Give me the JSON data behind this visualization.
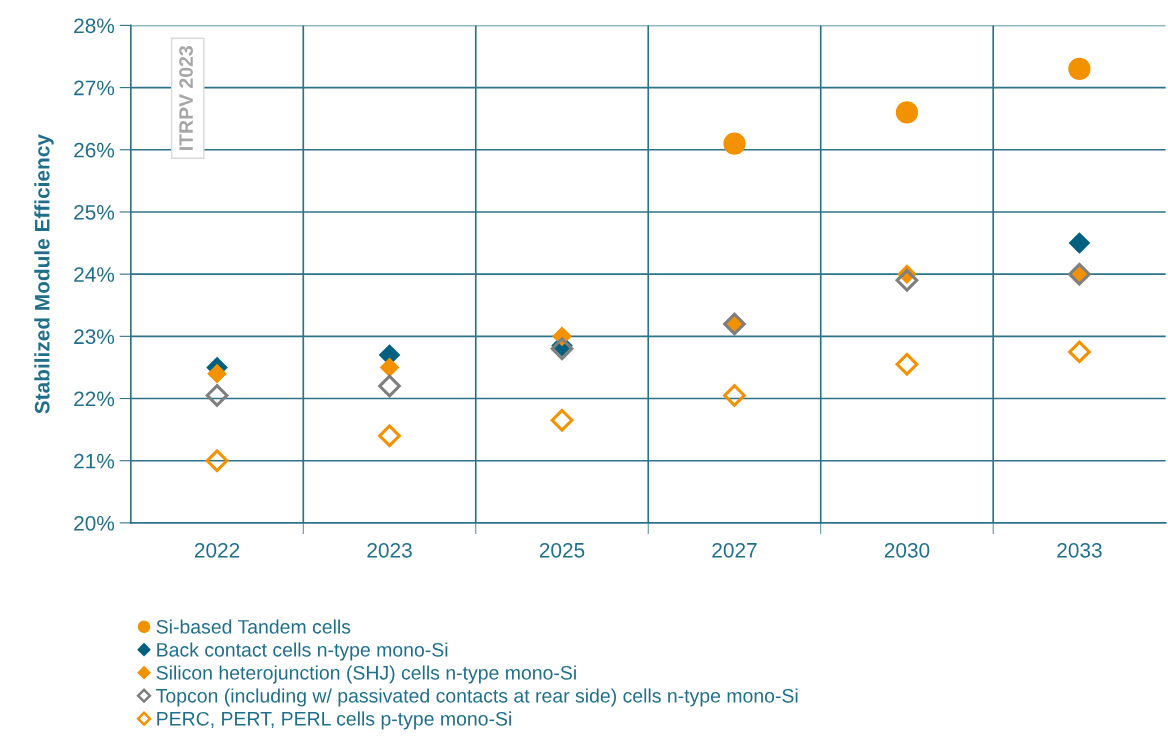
{
  "chart_data": {
    "type": "scatter",
    "ylabel": "Stabilized Module Efficiency",
    "categories": [
      "2022",
      "2023",
      "2025",
      "2027",
      "2030",
      "2033"
    ],
    "ylim": [
      20,
      28
    ],
    "yticks": [
      {
        "value": 20,
        "label": "20%"
      },
      {
        "value": 21,
        "label": "21%"
      },
      {
        "value": 22,
        "label": "22%"
      },
      {
        "value": 23,
        "label": "23%"
      },
      {
        "value": 24,
        "label": "24%"
      },
      {
        "value": 25,
        "label": "25%"
      },
      {
        "value": 26,
        "label": "26%"
      },
      {
        "value": 27,
        "label": "27%"
      },
      {
        "value": 28,
        "label": "28%"
      }
    ],
    "grid": true,
    "legend": "bottom",
    "annotations": [
      "ITRPV 2023"
    ],
    "series": [
      {
        "name": "Si-based Tandem cells",
        "color": "#f39200",
        "marker": "circle",
        "values": [
          null,
          null,
          null,
          26.1,
          26.6,
          27.3
        ]
      },
      {
        "name": "Back contact cells n-type mono-Si",
        "color": "#00607f",
        "marker": "diamond",
        "values": [
          22.5,
          22.7,
          22.85,
          null,
          null,
          24.5
        ]
      },
      {
        "name": "Silicon heterojunction (SHJ) cells n-type mono-Si",
        "color": "#f39200",
        "marker": "diamond",
        "values": [
          22.4,
          22.5,
          23.0,
          23.2,
          24.0,
          24.0
        ]
      },
      {
        "name": "Topcon (including w/ passivated contacts at rear side) cells n-type mono-Si",
        "color": "#7f7f7f",
        "marker": "diamond",
        "values": [
          22.05,
          22.2,
          22.8,
          23.2,
          23.9,
          24.0
        ]
      },
      {
        "name": "PERC, PERT, PERL cells p-type mono-Si",
        "color": "#f39200",
        "marker": "diamond",
        "values": [
          21.0,
          21.4,
          21.65,
          22.05,
          22.55,
          22.75
        ]
      }
    ]
  }
}
